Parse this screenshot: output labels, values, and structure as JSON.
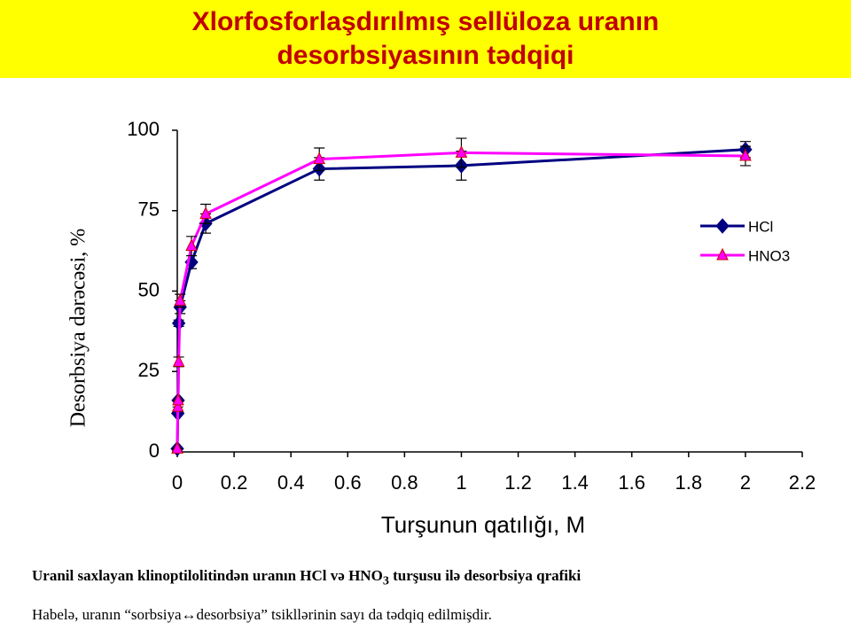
{
  "header": {
    "title": "Xlorfosforlaşdırılmış sellüloza uranın desorbsiyasının tədqiqi"
  },
  "chart_data": {
    "type": "line",
    "x_label": "Turşunun qatılığı,  M",
    "y_label": "Desorbsiya dərəcəsi,   %",
    "x": [
      0,
      0.002,
      0.003,
      0.005,
      0.01,
      0.05,
      0.1,
      0.5,
      1,
      2
    ],
    "series": [
      {
        "name": "HCl",
        "color": "#000080",
        "marker": "diamond",
        "values": [
          1,
          12,
          16,
          40,
          45,
          59,
          71,
          88,
          89,
          94
        ],
        "errors": [
          0,
          0,
          0,
          1,
          2,
          2,
          3,
          3.5,
          4.5,
          2.5
        ]
      },
      {
        "name": "HNO3",
        "color": "#ff00ff",
        "marker": "triangle",
        "values": [
          1,
          14,
          16,
          28,
          47,
          64,
          74,
          91,
          93,
          92
        ],
        "errors": [
          0,
          0,
          0,
          1.5,
          2,
          3,
          3,
          3.5,
          4.5,
          3
        ]
      }
    ],
    "xlim": [
      0,
      2.2
    ],
    "xticks": [
      0,
      0.2,
      0.4,
      0.6,
      0.8,
      1,
      1.2,
      1.4,
      1.6,
      1.8,
      2,
      2.2
    ],
    "ylim": [
      0,
      100
    ],
    "yticks": [
      0,
      25,
      50,
      75,
      100
    ],
    "grid": false,
    "legend": "right"
  },
  "caption": {
    "parts": [
      "Uranil saxlayan klinoptilolitindən uranın HCl və HNO",
      "3",
      " turşusu ilə desorbsiya qrafiki"
    ],
    "note": "Habelə, uranın “sorbsiya↔desorbsiya” tsikllərinin sayı da tədqiq edilmişdir."
  }
}
